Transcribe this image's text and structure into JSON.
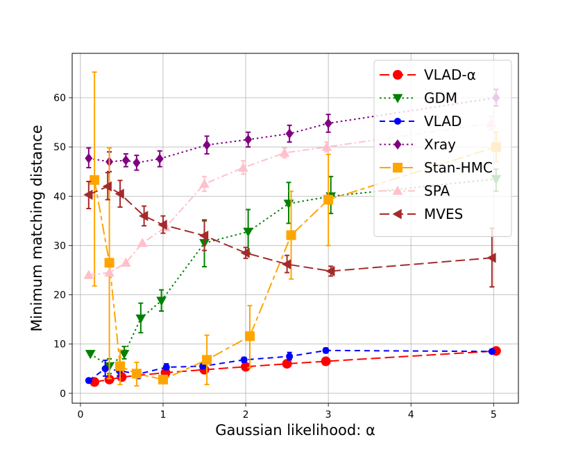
{
  "chart_data": {
    "type": "line",
    "title": "",
    "xlabel": "Gaussian likelihood: α",
    "ylabel": "Minimum matching distance",
    "xlim": [
      -0.1,
      5.3
    ],
    "ylim": [
      -2,
      69
    ],
    "xticks": [
      0,
      1,
      2,
      3,
      4,
      5
    ],
    "yticks": [
      0,
      10,
      20,
      30,
      40,
      50,
      60
    ],
    "grid": true,
    "legend_position": "top-right",
    "series": [
      {
        "name": "VLAD-α",
        "color": "#ff0000",
        "dash": "long",
        "marker": "circle",
        "marker_scale": 1.0,
        "err_color": "#ff0000",
        "points": [
          {
            "x": 0.17,
            "y": 2.3,
            "lo": 2.3,
            "hi": 2.3
          },
          {
            "x": 0.35,
            "y": 2.8,
            "lo": 2.8,
            "hi": 2.8
          },
          {
            "x": 0.5,
            "y": 3.3,
            "lo": 3.3,
            "hi": 3.3
          },
          {
            "x": 1.03,
            "y": 4.2,
            "lo": 4.2,
            "hi": 4.2
          },
          {
            "x": 1.5,
            "y": 4.8,
            "lo": 4.8,
            "hi": 4.8
          },
          {
            "x": 2.0,
            "y": 5.4,
            "lo": 5.4,
            "hi": 5.4
          },
          {
            "x": 2.5,
            "y": 6.0,
            "lo": 6.0,
            "hi": 6.0
          },
          {
            "x": 2.97,
            "y": 6.5,
            "lo": 6.5,
            "hi": 6.5
          },
          {
            "x": 5.03,
            "y": 8.6,
            "lo": 8.6,
            "hi": 8.6
          }
        ]
      },
      {
        "name": "GDM",
        "color": "#008000",
        "dash": "dot",
        "marker": "triangle-down",
        "marker_scale": 1.0,
        "err_color": "#008000",
        "points": [
          {
            "x": 0.12,
            "y": 8.0,
            "lo": 8.0,
            "hi": 8.0
          },
          {
            "x": 0.35,
            "y": 5.5,
            "lo": 4.0,
            "hi": 7.0
          },
          {
            "x": 0.53,
            "y": 8.0,
            "lo": 7.0,
            "hi": 9.5
          },
          {
            "x": 0.73,
            "y": 15.2,
            "lo": 12.3,
            "hi": 18.3
          },
          {
            "x": 0.98,
            "y": 18.8,
            "lo": 16.7,
            "hi": 21.0
          },
          {
            "x": 1.5,
            "y": 30.5,
            "lo": 25.7,
            "hi": 35.2
          },
          {
            "x": 2.03,
            "y": 32.8,
            "lo": 28.5,
            "hi": 37.3
          },
          {
            "x": 2.52,
            "y": 38.5,
            "lo": 34.5,
            "hi": 42.8
          },
          {
            "x": 3.03,
            "y": 40.0,
            "lo": 36.5,
            "hi": 44.0
          },
          {
            "x": 5.03,
            "y": 43.5,
            "lo": 41.0,
            "hi": 45.5
          }
        ]
      },
      {
        "name": "VLAD",
        "color": "#0000ff",
        "dash": "dash",
        "marker": "circle",
        "marker_scale": 0.7,
        "err_color": "#0000ff",
        "points": [
          {
            "x": 0.1,
            "y": 2.6,
            "lo": 2.2,
            "hi": 3.0
          },
          {
            "x": 0.3,
            "y": 5.0,
            "lo": 3.5,
            "hi": 6.7
          },
          {
            "x": 0.47,
            "y": 4.6,
            "lo": 3.5,
            "hi": 5.8
          },
          {
            "x": 0.7,
            "y": 3.9,
            "lo": 3.0,
            "hi": 4.8
          },
          {
            "x": 1.04,
            "y": 5.3,
            "lo": 4.8,
            "hi": 6.0
          },
          {
            "x": 1.48,
            "y": 5.5,
            "lo": 5.0,
            "hi": 6.0
          },
          {
            "x": 1.98,
            "y": 6.8,
            "lo": 6.3,
            "hi": 7.3
          },
          {
            "x": 2.53,
            "y": 7.5,
            "lo": 6.8,
            "hi": 8.3
          },
          {
            "x": 2.97,
            "y": 8.7,
            "lo": 8.2,
            "hi": 9.2
          },
          {
            "x": 4.98,
            "y": 8.5,
            "lo": 8.3,
            "hi": 8.8
          }
        ]
      },
      {
        "name": "Xray",
        "color": "#800080",
        "dash": "dot",
        "marker": "diamond",
        "marker_scale": 1.0,
        "err_color": "#800080",
        "points": [
          {
            "x": 0.1,
            "y": 47.7,
            "lo": 45.8,
            "hi": 49.8
          },
          {
            "x": 0.35,
            "y": 47.0,
            "lo": 45.0,
            "hi": 49.0
          },
          {
            "x": 0.55,
            "y": 47.3,
            "lo": 46.0,
            "hi": 48.6
          },
          {
            "x": 0.68,
            "y": 46.8,
            "lo": 45.3,
            "hi": 48.3
          },
          {
            "x": 0.96,
            "y": 47.6,
            "lo": 46.0,
            "hi": 49.2
          },
          {
            "x": 1.53,
            "y": 50.4,
            "lo": 48.6,
            "hi": 52.2
          },
          {
            "x": 2.03,
            "y": 51.5,
            "lo": 50.0,
            "hi": 53.0
          },
          {
            "x": 2.53,
            "y": 52.7,
            "lo": 51.0,
            "hi": 54.4
          },
          {
            "x": 3.0,
            "y": 54.8,
            "lo": 53.0,
            "hi": 56.6
          },
          {
            "x": 5.03,
            "y": 60.0,
            "lo": 58.3,
            "hi": 61.7
          }
        ]
      },
      {
        "name": "Stan-HMC",
        "color": "#ffa500",
        "dash": "longshort",
        "marker": "square",
        "marker_scale": 1.0,
        "err_color": "#ffa500",
        "points": [
          {
            "x": 0.17,
            "y": 43.3,
            "lo": 21.8,
            "hi": 65.2
          },
          {
            "x": 0.35,
            "y": 26.5,
            "lo": 3.0,
            "hi": 49.8
          },
          {
            "x": 0.48,
            "y": 5.5,
            "lo": 1.8,
            "hi": 8.8
          },
          {
            "x": 0.68,
            "y": 4.0,
            "lo": 1.5,
            "hi": 6.3
          },
          {
            "x": 1.0,
            "y": 2.8,
            "lo": 2.8,
            "hi": 2.8
          },
          {
            "x": 1.53,
            "y": 6.8,
            "lo": 1.8,
            "hi": 11.8
          },
          {
            "x": 2.05,
            "y": 11.6,
            "lo": 5.2,
            "hi": 17.8
          },
          {
            "x": 2.55,
            "y": 32.1,
            "lo": 23.2,
            "hi": 41.0
          },
          {
            "x": 3.0,
            "y": 39.3,
            "lo": 30.0,
            "hi": 48.5
          },
          {
            "x": 5.03,
            "y": 50.0,
            "lo": 47.0,
            "hi": 53.0
          }
        ]
      },
      {
        "name": "SPA",
        "color": "#ffc0cb",
        "dash": "dashdot",
        "marker": "triangle-up",
        "marker_scale": 1.0,
        "err_color": "#ffc0cb",
        "points": [
          {
            "x": 0.1,
            "y": 24.0,
            "lo": 24.0,
            "hi": 24.0
          },
          {
            "x": 0.35,
            "y": 24.5,
            "lo": 24.5,
            "hi": 24.5
          },
          {
            "x": 0.55,
            "y": 26.5,
            "lo": 26.5,
            "hi": 26.5
          },
          {
            "x": 0.75,
            "y": 30.5,
            "lo": 30.5,
            "hi": 30.5
          },
          {
            "x": 1.03,
            "y": 33.7,
            "lo": 33.7,
            "hi": 33.7
          },
          {
            "x": 1.5,
            "y": 42.5,
            "lo": 41.0,
            "hi": 44.0
          },
          {
            "x": 1.97,
            "y": 45.8,
            "lo": 44.5,
            "hi": 47.2
          },
          {
            "x": 2.47,
            "y": 48.8,
            "lo": 47.8,
            "hi": 49.8
          },
          {
            "x": 2.98,
            "y": 50.0,
            "lo": 49.0,
            "hi": 51.0
          },
          {
            "x": 4.97,
            "y": 54.8,
            "lo": 53.5,
            "hi": 56.2
          }
        ]
      },
      {
        "name": "MVES",
        "color": "#a52a2a",
        "dash": "long",
        "marker": "triangle-left",
        "marker_scale": 1.0,
        "err_color": "#a52a2a",
        "points": [
          {
            "x": 0.1,
            "y": 40.3,
            "lo": 37.5,
            "hi": 43.0
          },
          {
            "x": 0.33,
            "y": 42.0,
            "lo": 39.3,
            "hi": 44.8
          },
          {
            "x": 0.48,
            "y": 40.5,
            "lo": 37.8,
            "hi": 43.2
          },
          {
            "x": 0.77,
            "y": 36.0,
            "lo": 34.0,
            "hi": 38.0
          },
          {
            "x": 1.0,
            "y": 34.2,
            "lo": 32.5,
            "hi": 36.0
          },
          {
            "x": 1.5,
            "y": 32.0,
            "lo": 29.0,
            "hi": 35.0
          },
          {
            "x": 2.0,
            "y": 28.5,
            "lo": 27.4,
            "hi": 29.6
          },
          {
            "x": 2.5,
            "y": 26.2,
            "lo": 24.5,
            "hi": 28.0
          },
          {
            "x": 3.03,
            "y": 24.8,
            "lo": 23.8,
            "hi": 25.8
          },
          {
            "x": 4.98,
            "y": 27.5,
            "lo": 21.6,
            "hi": 33.5
          }
        ]
      }
    ]
  }
}
